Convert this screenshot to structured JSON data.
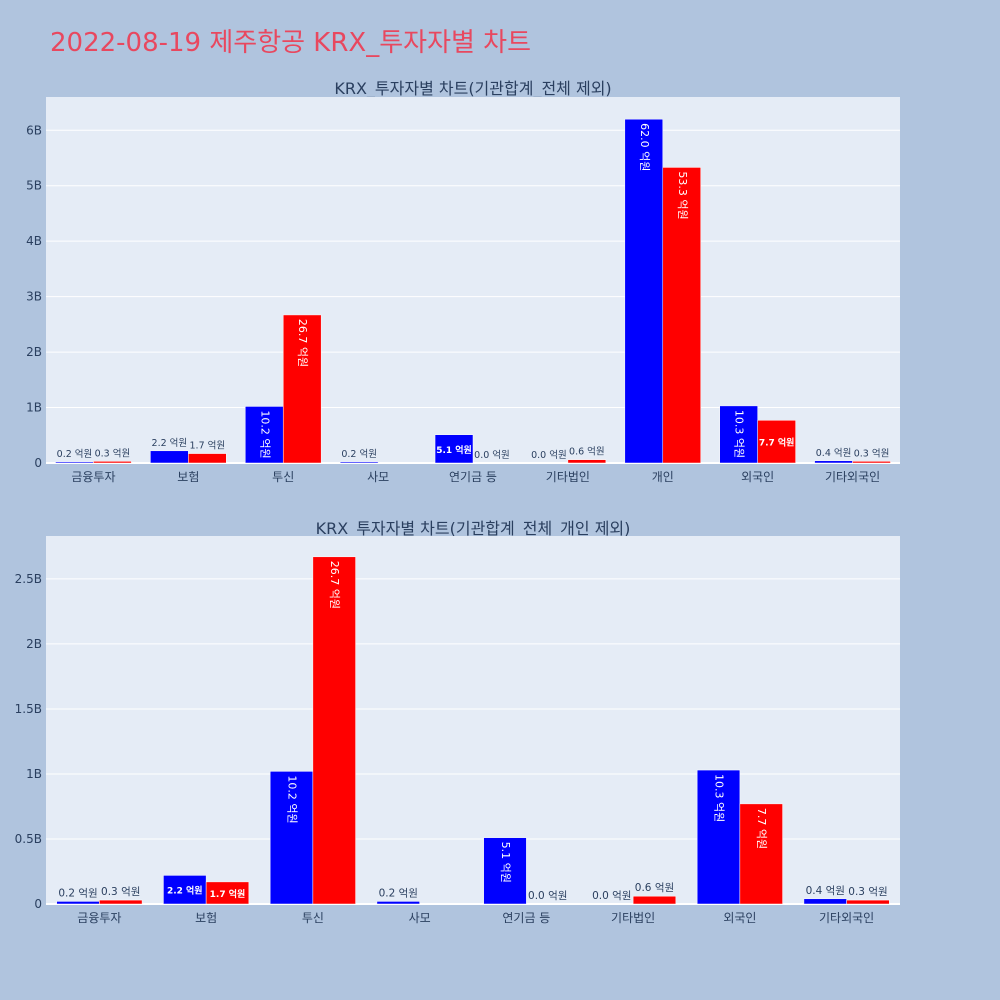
{
  "page": {
    "title": "2022-08-19 제주항공 KRX_투자자별 차트"
  },
  "colors": {
    "buy": "#0000ff",
    "sell": "#ff0000",
    "plot_bg": "#e5ecf6",
    "page_bg": "#b0c4de",
    "title": "#e8485f"
  },
  "chart_data": [
    {
      "type": "bar",
      "title": "KRX_투자자별 차트(기관합계_전체 제외)",
      "categories": [
        "금융투자",
        "보험",
        "투신",
        "사모",
        "연기금 등",
        "기타법인",
        "개인",
        "외국인",
        "기타외국인"
      ],
      "ylim": [
        0,
        6.6
      ],
      "yticks": [
        0,
        1,
        2,
        3,
        4,
        5,
        6
      ],
      "ytick_labels": [
        "0",
        "1B",
        "2B",
        "3B",
        "4B",
        "5B",
        "6B"
      ],
      "grid": true,
      "series": [
        {
          "color": "#0000ff",
          "values": [
            0.02,
            0.22,
            1.02,
            0.02,
            0.51,
            0.0,
            6.2,
            1.03,
            0.04
          ],
          "labels": [
            "0.2 억원",
            "2.2 억원",
            "10.2 억원",
            "0.2 억원",
            "5.1 억원",
            "0.0 억원",
            "62.0 억원",
            "10.3 억원",
            "0.4 억원"
          ]
        },
        {
          "color": "#ff0000",
          "values": [
            0.03,
            0.17,
            2.67,
            null,
            0.0,
            0.06,
            5.33,
            0.77,
            0.03
          ],
          "labels": [
            "0.3 억원",
            "1.7 억원",
            "26.7 억원",
            "",
            "0.0 억원",
            "0.6 억원",
            "53.3 억원",
            "7.7 억원",
            "0.3 억원"
          ]
        }
      ]
    },
    {
      "type": "bar",
      "title": "KRX_투자자별 차트(기관합계_전체_개인 제외)",
      "categories": [
        "금융투자",
        "보험",
        "투신",
        "사모",
        "연기금 등",
        "기타법인",
        "외국인",
        "기타외국인"
      ],
      "ylim": [
        0,
        2.83
      ],
      "yticks": [
        0,
        0.5,
        1,
        1.5,
        2,
        2.5
      ],
      "ytick_labels": [
        "0",
        "0.5B",
        "1B",
        "1.5B",
        "2B",
        "2.5B"
      ],
      "grid": true,
      "series": [
        {
          "color": "#0000ff",
          "values": [
            0.02,
            0.22,
            1.02,
            0.02,
            0.51,
            0.0,
            1.03,
            0.04
          ],
          "labels": [
            "0.2 억원",
            "2.2 억원",
            "10.2 억원",
            "0.2 억원",
            "5.1 억원",
            "0.0 억원",
            "10.3 억원",
            "0.4 억원"
          ]
        },
        {
          "color": "#ff0000",
          "values": [
            0.03,
            0.17,
            2.67,
            null,
            0.0,
            0.06,
            0.77,
            0.03
          ],
          "labels": [
            "0.3 억원",
            "1.7 억원",
            "26.7 억원",
            "",
            "0.0 억원",
            "0.6 억원",
            "7.7 억원",
            "0.3 억원"
          ]
        }
      ]
    }
  ]
}
